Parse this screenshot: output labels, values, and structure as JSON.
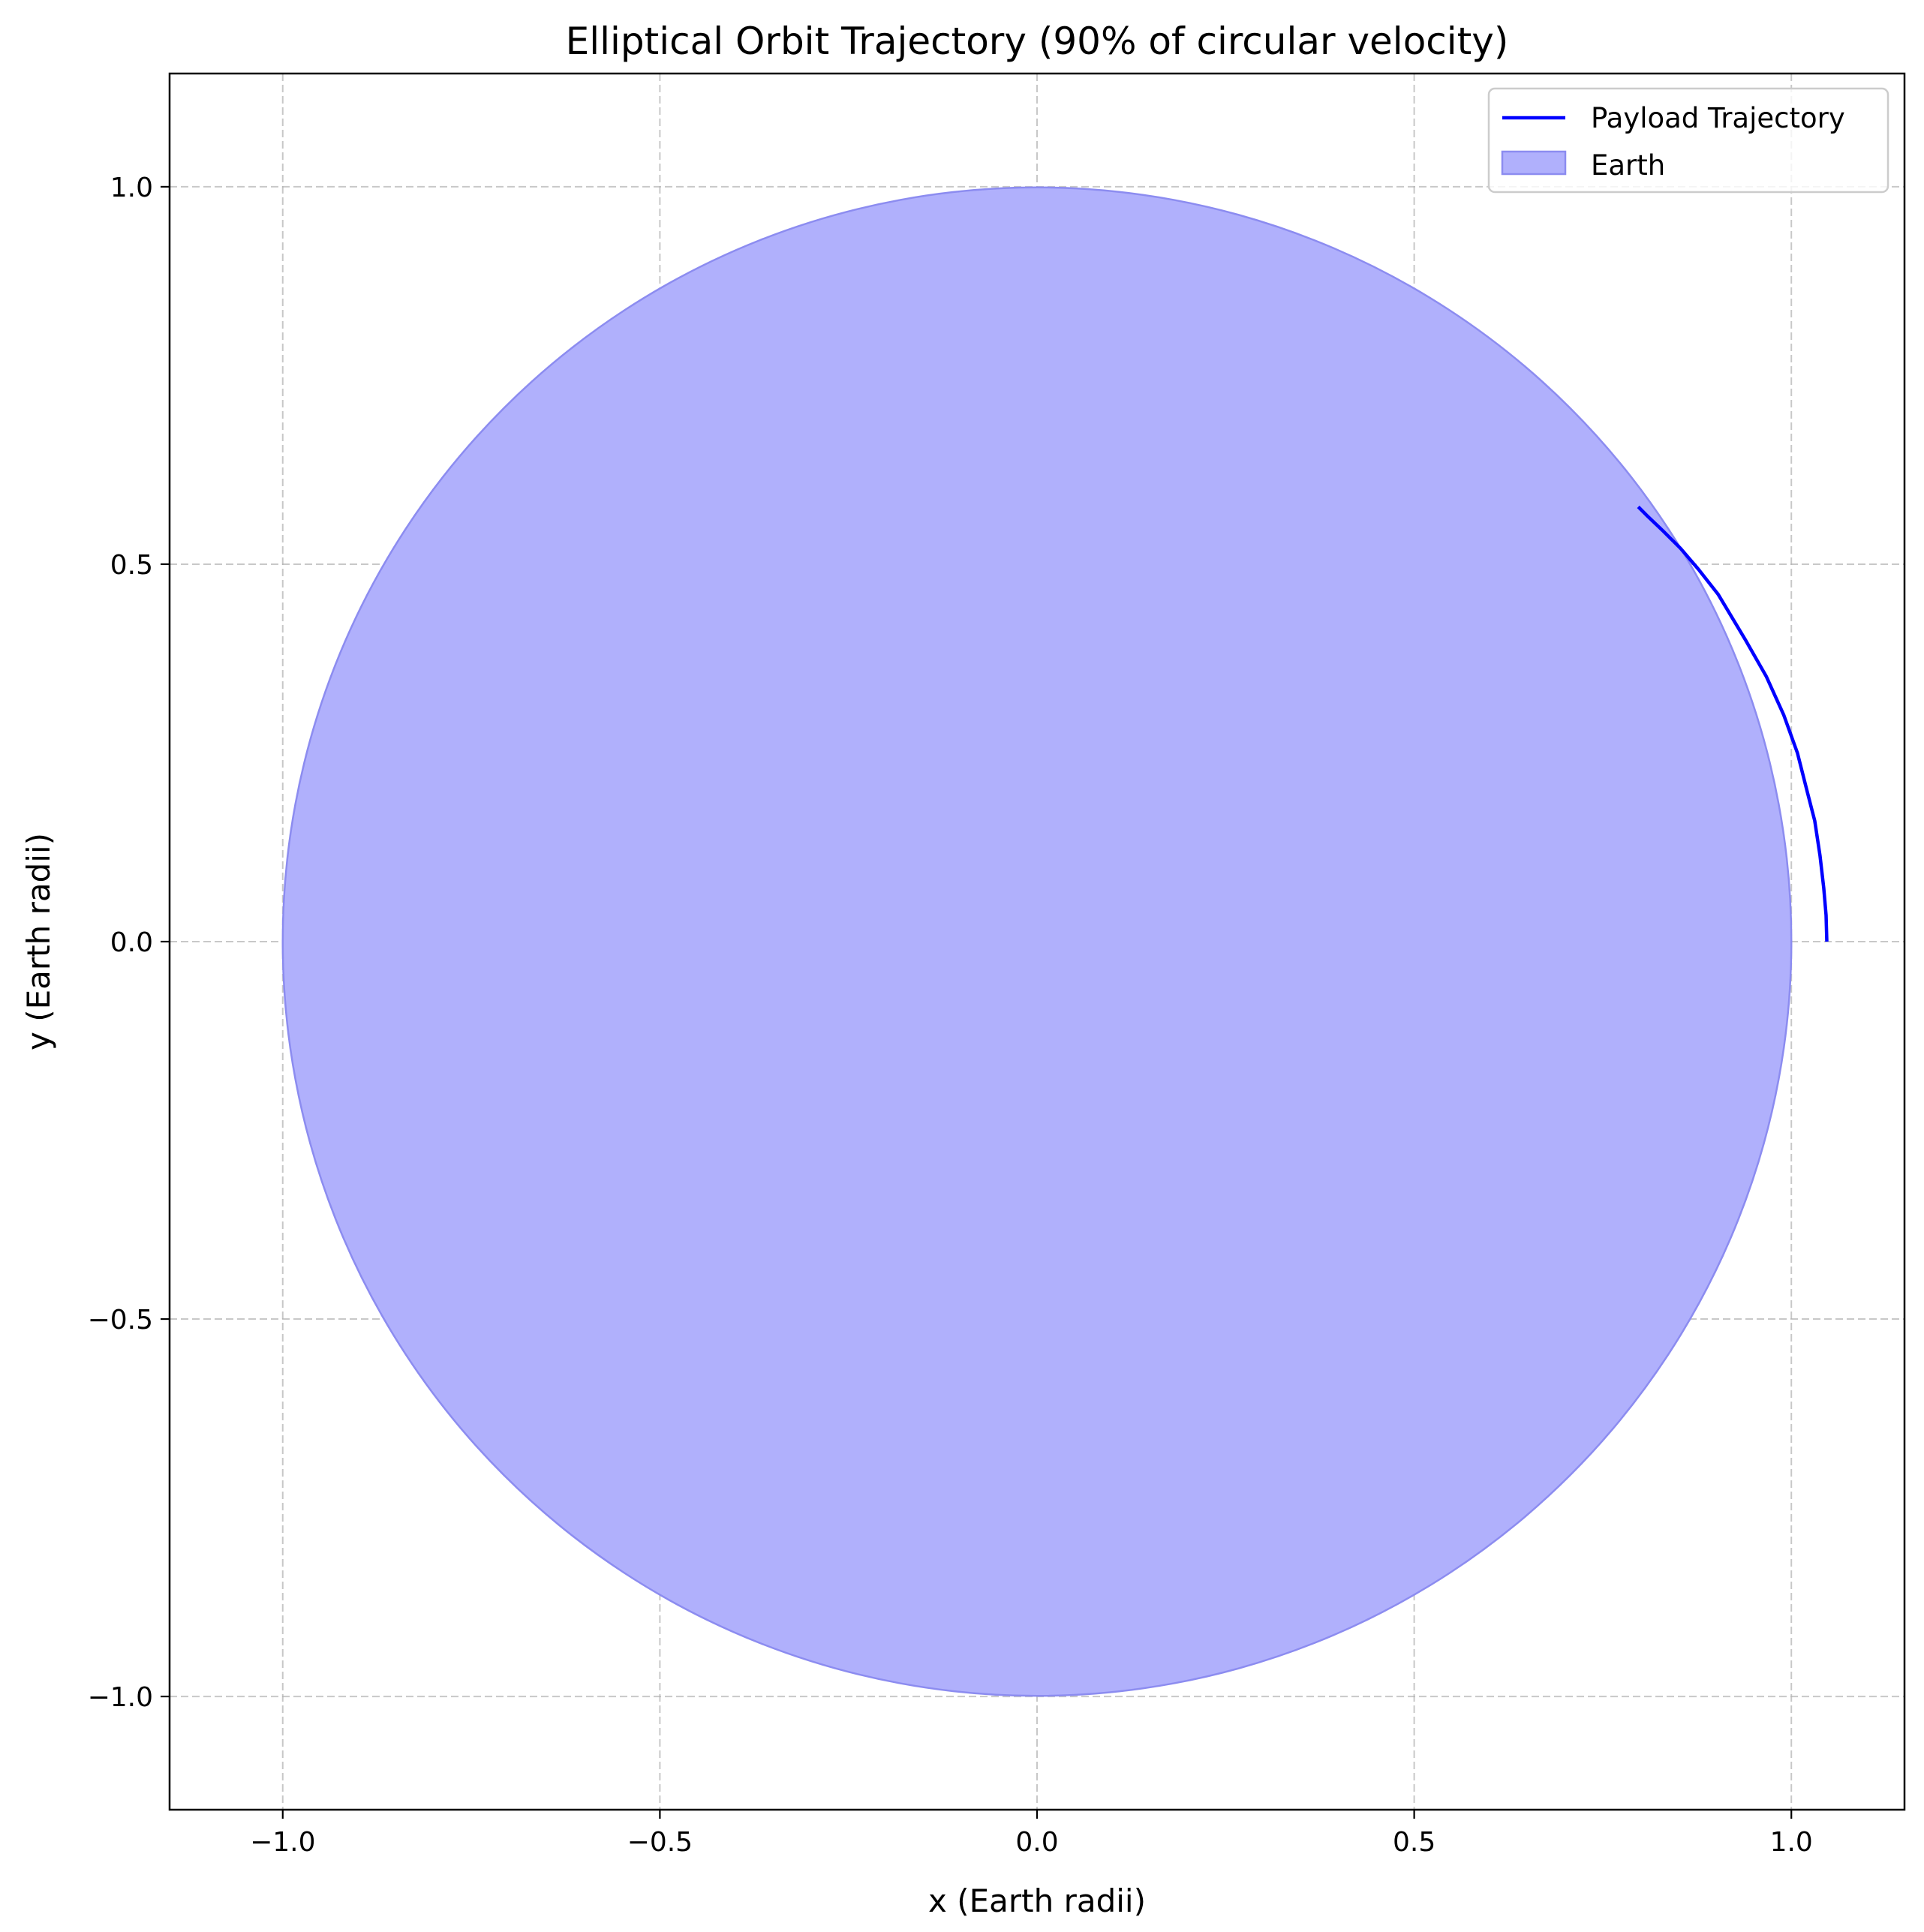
{
  "chart_data": {
    "type": "line",
    "title": "Elliptical Orbit Trajectory (90% of circular velocity)",
    "xlabel": "x (Earth radii)",
    "ylabel": "y (Earth radii)",
    "xlim": [
      -1.15,
      1.15
    ],
    "ylim": [
      -1.15,
      1.15
    ],
    "xticks": [
      -1.0,
      -0.5,
      0.0,
      0.5,
      1.0
    ],
    "yticks": [
      -1.0,
      -0.5,
      0.0,
      0.5,
      1.0
    ],
    "xtick_labels": [
      "−1.0",
      "−0.5",
      "0.0",
      "0.5",
      "1.0"
    ],
    "ytick_labels": [
      "−1.0",
      "−0.5",
      "0.0",
      "0.5",
      "1.0"
    ],
    "grid": true,
    "legend_position": "top-right",
    "legend": [
      "Payload Trajectory",
      "Earth"
    ],
    "series": [
      {
        "name": "Payload Trajectory",
        "color": "#0000ff",
        "x": [
          1.047,
          1.046,
          1.043,
          1.038,
          1.031,
          1.021,
          1.008,
          0.99,
          0.967,
          0.939,
          0.903,
          0.877,
          0.853,
          0.83,
          0.808,
          0.797
        ],
        "y": [
          0.0,
          0.035,
          0.071,
          0.114,
          0.16,
          0.199,
          0.25,
          0.3,
          0.351,
          0.4,
          0.46,
          0.493,
          0.521,
          0.544,
          0.565,
          0.576
        ]
      }
    ],
    "shapes": [
      {
        "name": "Earth",
        "kind": "circle",
        "center": [
          0,
          0
        ],
        "radius": 1.0,
        "fill": "#b0b0fc",
        "edge": "#8c8cf0"
      }
    ]
  }
}
